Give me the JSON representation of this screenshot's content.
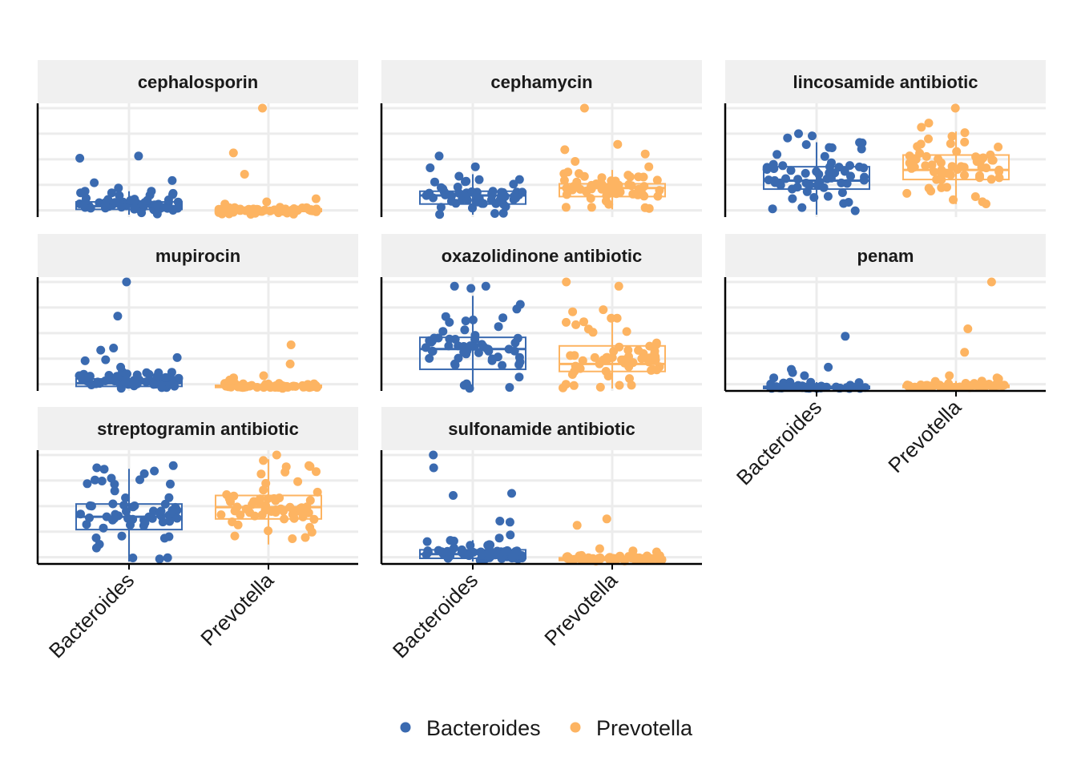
{
  "chart_data": {
    "type": "box-jitter-facets",
    "categories": [
      "Bacteroides",
      "Prevotella"
    ],
    "colors": {
      "Bacteroides": "#3a6ab0",
      "Prevotella": "#fdb462"
    },
    "strip_color": "#f0f0f0",
    "grid_color": "#ececec",
    "legend": {
      "placement": "bottom",
      "entries": [
        {
          "name": "Bacteroides",
          "color": "#3a6ab0"
        },
        {
          "name": "Prevotella",
          "color": "#fdb462"
        }
      ]
    },
    "y_ticks_shown": false,
    "ylim": [
      0,
      1
    ],
    "grid_y": [
      0.04,
      0.28,
      0.52,
      0.76,
      1.0
    ],
    "facets": [
      {
        "title": "cephalosporin",
        "boxes": [
          {
            "q1": 0.05,
            "median": 0.08,
            "q3": 0.12,
            "lo": 0.0,
            "hi": 0.22
          },
          {
            "q1": 0.03,
            "median": 0.04,
            "q3": 0.055,
            "lo": 0.0,
            "hi": 0.07
          }
        ],
        "outliers": [
          [
            0.53,
            0.55,
            0.32,
            0.3,
            0.25,
            0.22,
            0.2,
            0.18
          ],
          [
            1.0,
            0.58,
            0.38,
            0.15,
            0.12,
            0.1
          ]
        ]
      },
      {
        "title": "cephamycin",
        "boxes": [
          {
            "q1": 0.1,
            "median": 0.18,
            "q3": 0.22,
            "lo": 0.0,
            "hi": 0.38
          },
          {
            "q1": 0.17,
            "median": 0.25,
            "q3": 0.29,
            "lo": 0.05,
            "hi": 0.42
          }
        ],
        "outliers": [
          [
            0.55,
            0.45,
            0.44
          ],
          [
            1.0,
            0.66,
            0.61,
            0.57,
            0.5,
            0.45
          ]
        ]
      },
      {
        "title": "lincosamide antibiotic",
        "boxes": [
          {
            "q1": 0.24,
            "median": 0.32,
            "q3": 0.45,
            "lo": 0.0,
            "hi": 0.68
          },
          {
            "q1": 0.33,
            "median": 0.42,
            "q3": 0.56,
            "lo": 0.1,
            "hi": 0.78
          }
        ],
        "outliers": [
          [
            0.76,
            0.74,
            0.72
          ],
          [
            1.0,
            0.86,
            0.82,
            0.77
          ]
        ]
      },
      {
        "title": "mupirocin",
        "boxes": [
          {
            "q1": 0.02,
            "median": 0.05,
            "q3": 0.09,
            "lo": 0.0,
            "hi": 0.16
          },
          {
            "q1": 0.01,
            "median": 0.02,
            "q3": 0.03,
            "lo": 0.0,
            "hi": 0.05
          }
        ],
        "outliers": [
          [
            1.0,
            0.68,
            0.38,
            0.36,
            0.29,
            0.27,
            0.26,
            0.2
          ],
          [
            0.41,
            0.23,
            0.12,
            0.1,
            0.08
          ]
        ]
      },
      {
        "title": "oxazolidinone antibiotic",
        "boxes": [
          {
            "q1": 0.18,
            "median": 0.37,
            "q3": 0.48,
            "lo": 0.0,
            "hi": 0.87
          },
          {
            "q1": 0.16,
            "median": 0.23,
            "q3": 0.4,
            "lo": 0.0,
            "hi": 0.7
          }
        ],
        "outliers": [
          [
            0.96,
            0.96,
            0.94
          ],
          [
            1.0,
            0.96,
            0.74,
            0.72
          ]
        ]
      },
      {
        "title": "penam",
        "boxes": [
          {
            "q1": 0.0,
            "median": 0.01,
            "q3": 0.02,
            "lo": 0.0,
            "hi": 0.06
          },
          {
            "q1": 0.01,
            "median": 0.02,
            "q3": 0.03,
            "lo": 0.0,
            "hi": 0.07
          }
        ],
        "outliers": [
          [
            0.49,
            0.18,
            0.2,
            0.15,
            0.12,
            0.1
          ],
          [
            1.0,
            0.56,
            0.34,
            0.12,
            0.1,
            0.09
          ]
        ]
      },
      {
        "title": "streptogramin antibiotic",
        "boxes": [
          {
            "q1": 0.3,
            "median": 0.42,
            "q3": 0.54,
            "lo": 0.0,
            "hi": 0.87
          },
          {
            "q1": 0.4,
            "median": 0.51,
            "q3": 0.62,
            "lo": 0.16,
            "hi": 0.96
          }
        ],
        "outliers": [
          [
            0.9,
            0.88,
            0.85
          ],
          [
            1.0,
            0.9,
            0.84
          ]
        ]
      },
      {
        "title": "sulfonamide antibiotic",
        "boxes": [
          {
            "q1": 0.03,
            "median": 0.07,
            "q3": 0.11,
            "lo": 0.0,
            "hi": 0.2
          },
          {
            "q1": 0.01,
            "median": 0.02,
            "q3": 0.035,
            "lo": 0.0,
            "hi": 0.06
          }
        ],
        "outliers": [
          [
            1.0,
            0.88,
            0.64,
            0.62,
            0.38,
            0.37,
            0.25,
            0.22
          ],
          [
            0.4,
            0.34,
            0.12,
            0.1,
            0.09
          ]
        ]
      }
    ]
  }
}
